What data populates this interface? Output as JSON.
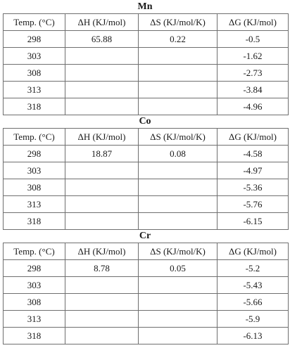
{
  "columns": {
    "temp": "Temp. (°C)",
    "dh": "ΔH (KJ/mol)",
    "ds": "ΔS (KJ/mol/K)",
    "dg": "ΔG (KJ/mol)"
  },
  "sections": [
    {
      "title": "Mn",
      "rows": [
        {
          "temp": "298",
          "dh": "65.88",
          "ds": "0.22",
          "dg": "-0.5"
        },
        {
          "temp": "303",
          "dh": "",
          "ds": "",
          "dg": "-1.62"
        },
        {
          "temp": "308",
          "dh": "",
          "ds": "",
          "dg": "-2.73"
        },
        {
          "temp": "313",
          "dh": "",
          "ds": "",
          "dg": "-3.84"
        },
        {
          "temp": "318",
          "dh": "",
          "ds": "",
          "dg": "-4.96"
        }
      ]
    },
    {
      "title": "Co",
      "rows": [
        {
          "temp": "298",
          "dh": "18.87",
          "ds": "0.08",
          "dg": "-4.58"
        },
        {
          "temp": "303",
          "dh": "",
          "ds": "",
          "dg": "-4.97"
        },
        {
          "temp": "308",
          "dh": "",
          "ds": "",
          "dg": "-5.36"
        },
        {
          "temp": "313",
          "dh": "",
          "ds": "",
          "dg": "-5.76"
        },
        {
          "temp": "318",
          "dh": "",
          "ds": "",
          "dg": "-6.15"
        }
      ]
    },
    {
      "title": "Cr",
      "rows": [
        {
          "temp": "298",
          "dh": "8.78",
          "ds": "0.05",
          "dg": "-5.2"
        },
        {
          "temp": "303",
          "dh": "",
          "ds": "",
          "dg": "-5.43"
        },
        {
          "temp": "308",
          "dh": "",
          "ds": "",
          "dg": "-5.66"
        },
        {
          "temp": "313",
          "dh": "",
          "ds": "",
          "dg": "-5.9"
        },
        {
          "temp": "318",
          "dh": "",
          "ds": "",
          "dg": "-6.13"
        }
      ]
    }
  ]
}
